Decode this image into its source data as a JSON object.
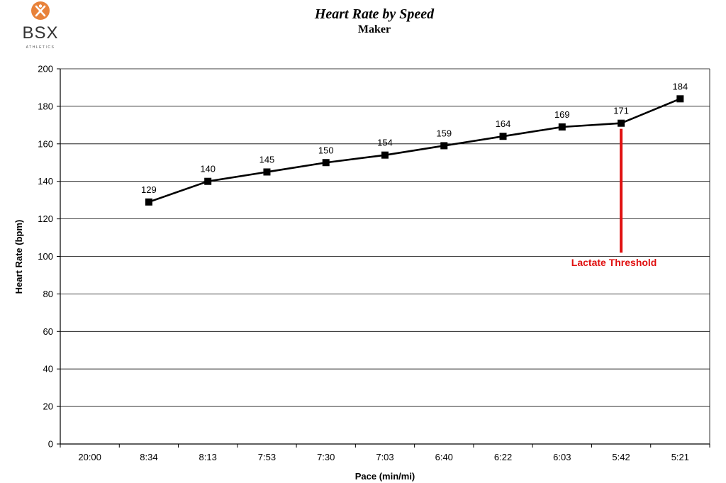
{
  "brand": {
    "name": "BSX",
    "tagline": "ATHLETICS",
    "accent_color": "#E8823A"
  },
  "chart_data": {
    "type": "line",
    "title": "Heart Rate by Speed",
    "subtitle": "Maker",
    "xlabel": "Pace (min/mi)",
    "ylabel": "Heart Rate (bpm)",
    "categories": [
      "20:00",
      "8:34",
      "8:13",
      "7:53",
      "7:30",
      "7:03",
      "6:40",
      "6:22",
      "6:03",
      "5:42",
      "5:21"
    ],
    "series": [
      {
        "values": [
          null,
          129,
          140,
          145,
          150,
          154,
          159,
          164,
          169,
          171,
          184
        ],
        "color": "#000000"
      }
    ],
    "ylim": [
      0,
      200
    ],
    "yticks": [
      0,
      20,
      40,
      60,
      80,
      100,
      120,
      140,
      160,
      180,
      200
    ],
    "grid": true,
    "annotations": [
      {
        "text": "Lactate Threshold",
        "category": "5:42",
        "y_from": 102,
        "y_to": 168,
        "color": "#E01010"
      }
    ]
  }
}
